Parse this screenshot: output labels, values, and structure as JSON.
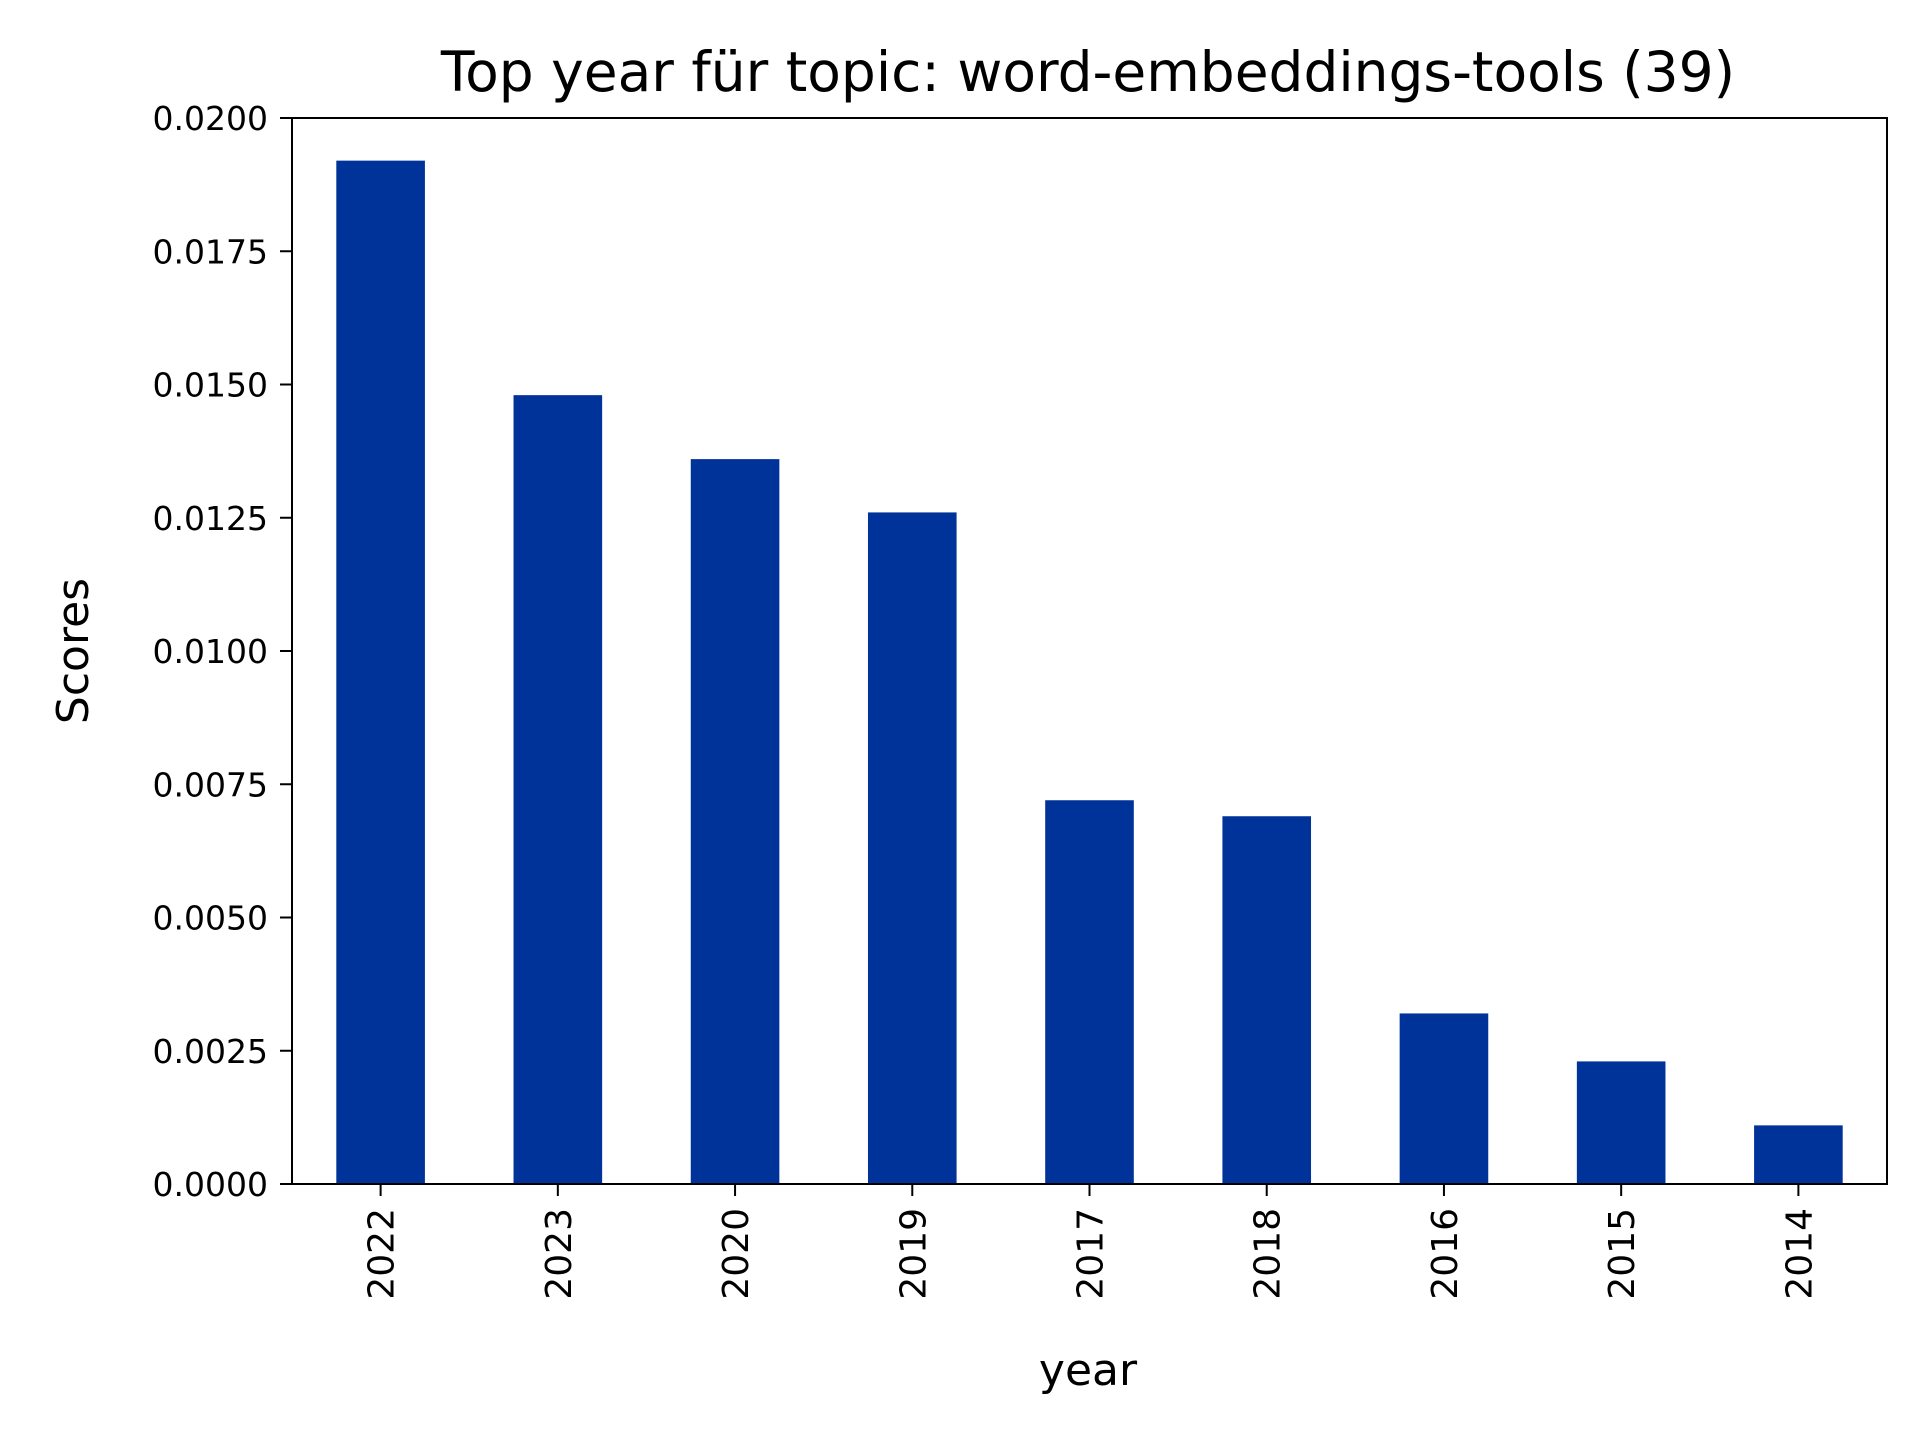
{
  "chart_data": {
    "type": "bar",
    "title": "Top year für topic: word-embeddings-tools (39)",
    "xlabel": "year",
    "ylabel": "Scores",
    "categories": [
      "2022",
      "2023",
      "2020",
      "2019",
      "2017",
      "2018",
      "2016",
      "2015",
      "2014"
    ],
    "values": [
      0.0192,
      0.0148,
      0.0136,
      0.0126,
      0.0072,
      0.0069,
      0.0032,
      0.0023,
      0.0011
    ],
    "ylim": [
      0,
      0.02
    ],
    "yticks": [
      "0.0000",
      "0.0025",
      "0.0050",
      "0.0075",
      "0.0100",
      "0.0125",
      "0.0150",
      "0.0175",
      "0.0200"
    ],
    "bar_color": "#003399",
    "grid": false,
    "legend": false
  }
}
